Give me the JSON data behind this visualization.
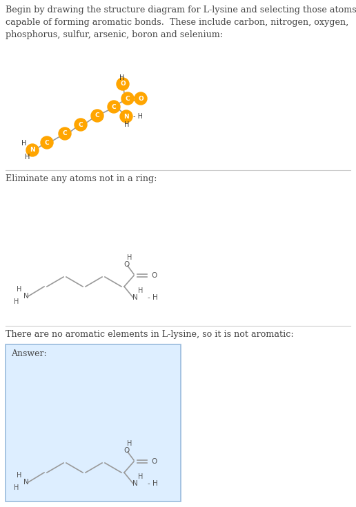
{
  "bg_color": "#ffffff",
  "text_color": "#444444",
  "orange_color": "#FFA500",
  "atom_text_color": "#ffffff",
  "section1_text": "Begin by drawing the structure diagram for L-lysine and selecting those atoms\ncapable of forming aromatic bonds.  These include carbon, nitrogen, oxygen,\nphosphorus, sulfur, arsenic, boron and selenium:",
  "section2_text": "Eliminate any atoms not in a ring:",
  "section3_text": "There are no aromatic elements in L-lysine, so it is not aromatic:",
  "answer_label": "Answer:",
  "answer_box_color": "#ddeeff",
  "answer_box_edge": "#99bbdd",
  "divider_color": "#cccccc",
  "font_size_text": 9.2,
  "bond_color": "#999999",
  "label_color": "#555555"
}
